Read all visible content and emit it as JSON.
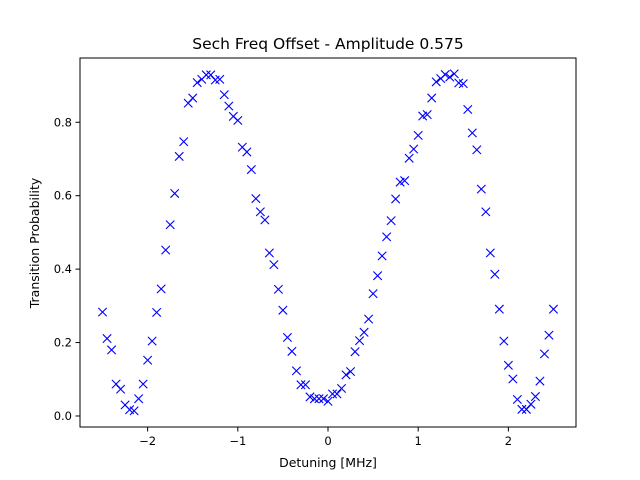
{
  "chart_data": {
    "type": "scatter",
    "title": "Sech Freq Offset - Amplitude 0.575",
    "xlabel": "Detuning [MHz]",
    "ylabel": "Transition Probability",
    "xlim": [
      -2.75,
      2.75
    ],
    "ylim": [
      -0.03,
      0.975
    ],
    "xticks": [
      -2,
      -1,
      0,
      1,
      2
    ],
    "yticks": [
      0.0,
      0.2,
      0.4,
      0.6,
      0.8
    ],
    "xtick_labels": [
      "−2",
      "−1",
      "0",
      "1",
      "2"
    ],
    "ytick_labels": [
      "0.0",
      "0.2",
      "0.4",
      "0.6",
      "0.8"
    ],
    "grid": false,
    "marker": "x",
    "color": "#0000ff",
    "series": [
      {
        "x": [
          -2.5,
          -2.45,
          -2.4,
          -2.35,
          -2.3,
          -2.25,
          -2.2,
          -2.15,
          -2.1,
          -2.05,
          -2.0,
          -1.95,
          -1.9,
          -1.85,
          -1.8,
          -1.75,
          -1.7,
          -1.65,
          -1.6,
          -1.55,
          -1.5,
          -1.45,
          -1.4,
          -1.35,
          -1.3,
          -1.25,
          -1.2,
          -1.15,
          -1.1,
          -1.05,
          -1.0,
          -0.95,
          -0.9,
          -0.85,
          -0.8,
          -0.75,
          -0.7,
          -0.65,
          -0.6,
          -0.55,
          -0.5,
          -0.45,
          -0.4,
          -0.35,
          -0.3,
          -0.25,
          -0.2,
          -0.15,
          -0.1,
          -0.05,
          0.0,
          0.05,
          0.1,
          0.15,
          0.2,
          0.25,
          0.3,
          0.35,
          0.4,
          0.45,
          0.5,
          0.55,
          0.6,
          0.65,
          0.7,
          0.75,
          0.8,
          0.85,
          0.9,
          0.95,
          1.0,
          1.05,
          1.1,
          1.15,
          1.2,
          1.25,
          1.3,
          1.35,
          1.4,
          1.45,
          1.5,
          1.55,
          1.6,
          1.65,
          1.7,
          1.75,
          1.8,
          1.85,
          1.9,
          1.95,
          2.0,
          2.05,
          2.1,
          2.15,
          2.2,
          2.25,
          2.3,
          2.35,
          2.4,
          2.45,
          2.5
        ],
        "y": [
          0.283,
          0.211,
          0.18,
          0.087,
          0.073,
          0.03,
          0.017,
          0.014,
          0.047,
          0.087,
          0.152,
          0.204,
          0.282,
          0.346,
          0.452,
          0.521,
          0.606,
          0.707,
          0.747,
          0.852,
          0.866,
          0.908,
          0.917,
          0.929,
          0.929,
          0.915,
          0.917,
          0.875,
          0.844,
          0.816,
          0.805,
          0.732,
          0.719,
          0.671,
          0.592,
          0.556,
          0.534,
          0.444,
          0.412,
          0.345,
          0.288,
          0.214,
          0.176,
          0.123,
          0.085,
          0.085,
          0.052,
          0.047,
          0.047,
          0.047,
          0.04,
          0.06,
          0.06,
          0.075,
          0.112,
          0.121,
          0.175,
          0.205,
          0.228,
          0.264,
          0.333,
          0.382,
          0.436,
          0.488,
          0.532,
          0.591,
          0.637,
          0.641,
          0.702,
          0.727,
          0.764,
          0.817,
          0.821,
          0.866,
          0.91,
          0.919,
          0.93,
          0.923,
          0.932,
          0.907,
          0.905,
          0.835,
          0.771,
          0.725,
          0.618,
          0.556,
          0.444,
          0.386,
          0.291,
          0.204,
          0.138,
          0.101,
          0.045,
          0.018,
          0.018,
          0.032,
          0.053,
          0.095,
          0.169,
          0.22,
          0.291
        ]
      }
    ]
  }
}
